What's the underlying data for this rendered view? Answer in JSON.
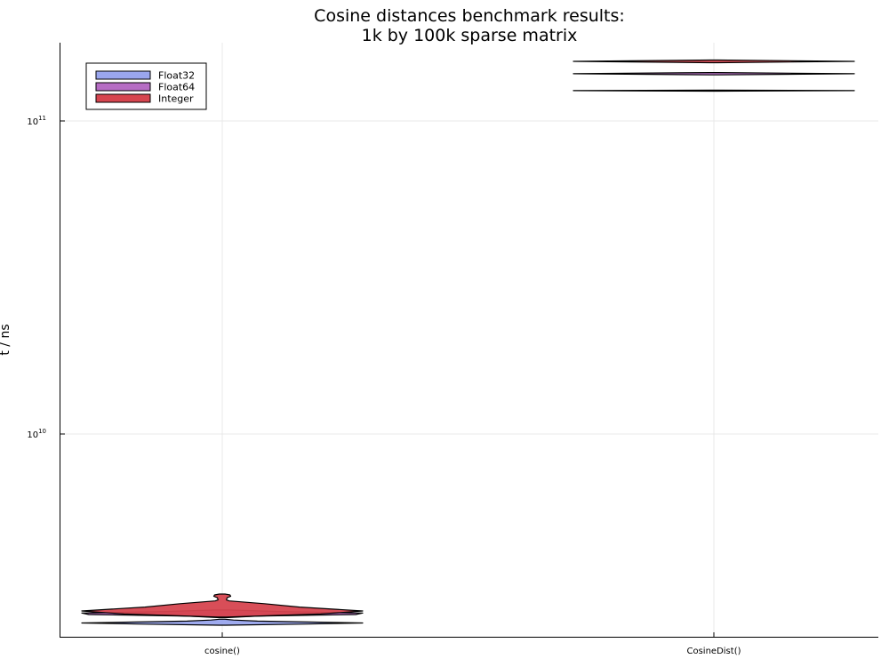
{
  "chart_data": {
    "type": "violin",
    "title_lines": [
      "Cosine distances benchmark results:",
      "1k by 100k sparse matrix"
    ],
    "xlabel": "",
    "ylabel": "t / ns",
    "y_scale": "log10",
    "ylim": [
      2200000000,
      180000000000
    ],
    "grid": true,
    "legend_position": "top-left",
    "categories": [
      "cosine()",
      "CosineDist()"
    ],
    "y_ticks": [
      {
        "base": "10",
        "exp": "10",
        "value": 10000000000
      },
      {
        "base": "10",
        "exp": "11",
        "value": 100000000000
      }
    ],
    "series": [
      {
        "name": "Float32",
        "color": "#9aa6ee",
        "violins": [
          {
            "category": "cosine()",
            "profile": [
              [
                2450000000,
                0.02
              ],
              [
                2470000000,
                0.55
              ],
              [
                2490000000,
                1.0
              ],
              [
                2505000000,
                0.7
              ],
              [
                2525000000,
                0.25
              ],
              [
                2545000000,
                0.08
              ],
              [
                2560000000,
                0.02
              ]
            ]
          },
          {
            "category": "CosineDist()",
            "profile": [
              [
                124500000000,
                0.03
              ],
              [
                125000000000,
                1.0
              ],
              [
                125500000000,
                0.03
              ]
            ]
          }
        ]
      },
      {
        "name": "Float64",
        "color": "#b66dc4",
        "violins": [
          {
            "category": "cosine()",
            "profile": [
              [
                2590000000,
                0.02
              ],
              [
                2620000000,
                0.25
              ],
              [
                2650000000,
                0.95
              ],
              [
                2680000000,
                1.0
              ],
              [
                2710000000,
                0.4
              ],
              [
                2740000000,
                0.05
              ]
            ]
          },
          {
            "category": "CosineDist()",
            "profile": [
              [
                140300000000,
                0.03
              ],
              [
                141500000000,
                1.0
              ],
              [
                142700000000,
                0.03
              ]
            ]
          }
        ]
      },
      {
        "name": "Integer",
        "color": "#d6454f",
        "violins": [
          {
            "category": "cosine()",
            "profile": [
              [
                2600000000,
                0.03
              ],
              [
                2660000000,
                0.7
              ],
              [
                2720000000,
                1.0
              ],
              [
                2800000000,
                0.55
              ],
              [
                2870000000,
                0.3
              ],
              [
                2930000000,
                0.05
              ],
              [
                2950000000,
                0.03
              ],
              [
                3000000000,
                0.035
              ],
              [
                3030000000,
                0.06
              ],
              [
                3060000000,
                0.055
              ],
              [
                3080000000,
                0.02
              ]
            ]
          },
          {
            "category": "CosineDist()",
            "profile": [
              [
                153500000000,
                0.03
              ],
              [
                155000000000,
                1.0
              ],
              [
                156500000000,
                0.03
              ]
            ]
          }
        ]
      }
    ]
  }
}
